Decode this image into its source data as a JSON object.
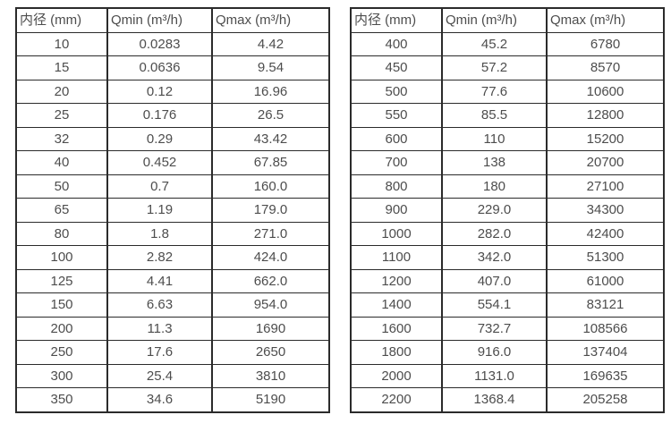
{
  "page": {
    "background_color": "#ffffff",
    "border_color": "#2b2b2b",
    "text_color": "#4d4d4d"
  },
  "tables": [
    {
      "name": "small-diameter-flow-table",
      "headers": [
        "内径 (mm)",
        "Qmin (m³/h)",
        "Qmax (m³/h)"
      ],
      "rows": [
        [
          "10",
          "0.0283",
          "4.42"
        ],
        [
          "15",
          "0.0636",
          "9.54"
        ],
        [
          "20",
          "0.12",
          "16.96"
        ],
        [
          "25",
          "0.176",
          "26.5"
        ],
        [
          "32",
          "0.29",
          "43.42"
        ],
        [
          "40",
          "0.452",
          "67.85"
        ],
        [
          "50",
          "0.7",
          "160.0"
        ],
        [
          "65",
          "1.19",
          "179.0"
        ],
        [
          "80",
          "1.8",
          "271.0"
        ],
        [
          "100",
          "2.82",
          "424.0"
        ],
        [
          "125",
          "4.41",
          "662.0"
        ],
        [
          "150",
          "6.63",
          "954.0"
        ],
        [
          "200",
          "11.3",
          "1690"
        ],
        [
          "250",
          "17.6",
          "2650"
        ],
        [
          "300",
          "25.4",
          "3810"
        ],
        [
          "350",
          "34.6",
          "5190"
        ]
      ]
    },
    {
      "name": "large-diameter-flow-table",
      "headers": [
        "内径 (mm)",
        "Qmin (m³/h)",
        "Qmax (m³/h)"
      ],
      "rows": [
        [
          "400",
          "45.2",
          "6780"
        ],
        [
          "450",
          "57.2",
          "8570"
        ],
        [
          "500",
          "77.6",
          "10600"
        ],
        [
          "550",
          "85.5",
          "12800"
        ],
        [
          "600",
          "110",
          "15200"
        ],
        [
          "700",
          "138",
          "20700"
        ],
        [
          "800",
          "180",
          "27100"
        ],
        [
          "900",
          "229.0",
          "34300"
        ],
        [
          "1000",
          "282.0",
          "42400"
        ],
        [
          "1100",
          "342.0",
          "51300"
        ],
        [
          "1200",
          "407.0",
          "61000"
        ],
        [
          "1400",
          "554.1",
          "83121"
        ],
        [
          "1600",
          "732.7",
          "108566"
        ],
        [
          "1800",
          "916.0",
          "137404"
        ],
        [
          "2000",
          "1131.0",
          "169635"
        ],
        [
          "2200",
          "1368.4",
          "205258"
        ]
      ]
    }
  ]
}
